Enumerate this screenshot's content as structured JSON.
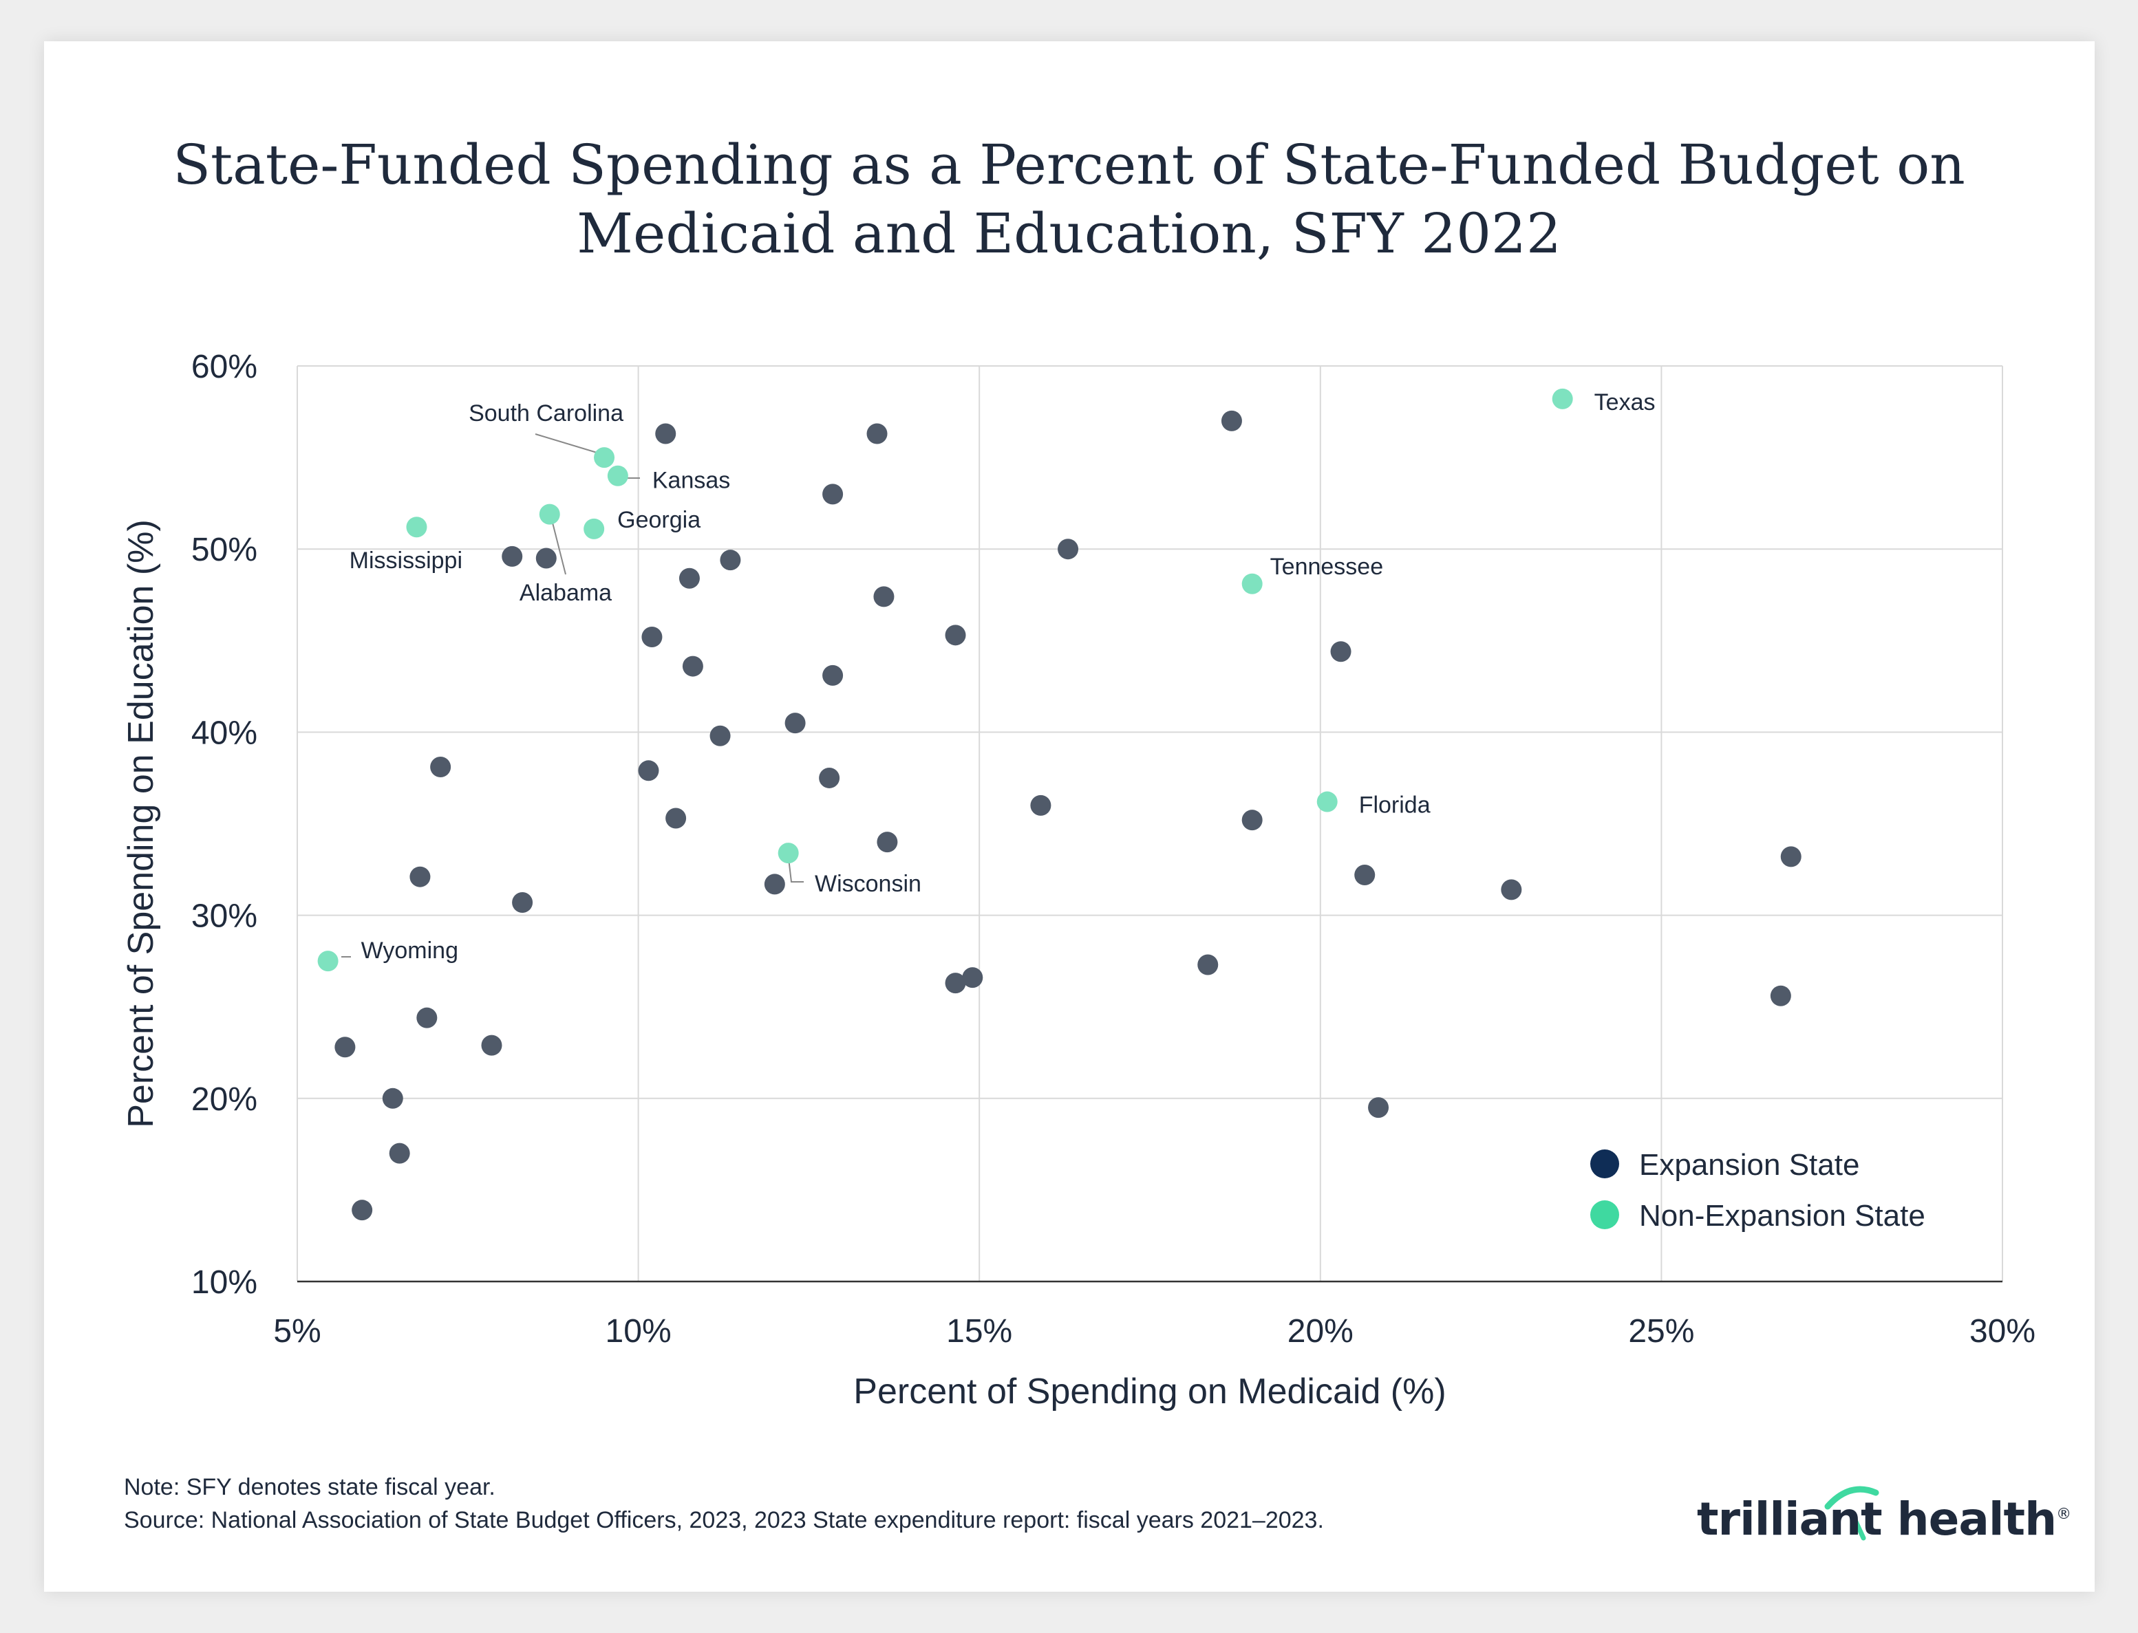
{
  "title_lines": [
    "State-Funded Spending as a Percent of State-Funded Budget on",
    "Medicaid and Education, SFY 2022"
  ],
  "note": "Note: SFY denotes state fiscal year.",
  "source": "Source: National Association of State Budget Officers, 2023, 2023 State expenditure report: fiscal years 2021–2023.",
  "logo": {
    "text": "trilliant health",
    "mark": "®"
  },
  "colors": {
    "expansion": "#505a69",
    "non_expansion": "#7ee2bf",
    "legend_expansion": "#0f2d56",
    "legend_non_expansion": "#3fd9a0"
  },
  "chart_data": {
    "type": "scatter",
    "title": "State-Funded Spending as a Percent of State-Funded Budget on Medicaid and Education, SFY 2022",
    "xlabel": "Percent of Spending on Medicaid (%)",
    "ylabel": "Percent of Spending on Education (%)",
    "xlim": [
      5,
      30
    ],
    "ylim": [
      10,
      60
    ],
    "x_ticks": [
      5,
      10,
      15,
      20,
      25,
      30
    ],
    "y_ticks": [
      10,
      20,
      30,
      40,
      50,
      60
    ],
    "x_tick_labels": [
      "5%",
      "10%",
      "15%",
      "20%",
      "25%",
      "30%"
    ],
    "y_tick_labels": [
      "10%",
      "20%",
      "30%",
      "40%",
      "50%",
      "60%"
    ],
    "grid": true,
    "legend": {
      "position": "bottom-right",
      "entries": [
        "Expansion State",
        "Non-Expansion State"
      ]
    },
    "series": [
      {
        "name": "Non-Expansion State",
        "points": [
          {
            "x": 23.55,
            "y": 58.2,
            "label": "Texas"
          },
          {
            "x": 9.5,
            "y": 55.0,
            "label": "South Carolina"
          },
          {
            "x": 9.7,
            "y": 54.0,
            "label": "Kansas"
          },
          {
            "x": 8.7,
            "y": 51.9,
            "label": "Alabama"
          },
          {
            "x": 9.35,
            "y": 51.1,
            "label": "Georgia"
          },
          {
            "x": 6.75,
            "y": 51.2,
            "label": "Mississippi"
          },
          {
            "x": 19.0,
            "y": 48.1,
            "label": "Tennessee"
          },
          {
            "x": 20.1,
            "y": 36.2,
            "label": "Florida"
          },
          {
            "x": 12.2,
            "y": 33.4,
            "label": "Wisconsin"
          },
          {
            "x": 5.45,
            "y": 27.5,
            "label": "Wyoming"
          }
        ]
      },
      {
        "name": "Expansion State",
        "points": [
          {
            "x": 18.7,
            "y": 57.0
          },
          {
            "x": 10.4,
            "y": 56.3
          },
          {
            "x": 13.5,
            "y": 56.3
          },
          {
            "x": 12.85,
            "y": 53.0
          },
          {
            "x": 16.3,
            "y": 50.0
          },
          {
            "x": 8.15,
            "y": 49.6
          },
          {
            "x": 8.65,
            "y": 49.5
          },
          {
            "x": 11.35,
            "y": 49.4
          },
          {
            "x": 10.75,
            "y": 48.4
          },
          {
            "x": 13.6,
            "y": 47.4
          },
          {
            "x": 10.2,
            "y": 45.2
          },
          {
            "x": 14.65,
            "y": 45.3
          },
          {
            "x": 20.3,
            "y": 44.4
          },
          {
            "x": 10.8,
            "y": 43.6
          },
          {
            "x": 12.85,
            "y": 43.1
          },
          {
            "x": 12.3,
            "y": 40.5
          },
          {
            "x": 11.2,
            "y": 39.8
          },
          {
            "x": 7.1,
            "y": 38.1
          },
          {
            "x": 10.15,
            "y": 37.9
          },
          {
            "x": 12.8,
            "y": 37.5
          },
          {
            "x": 15.9,
            "y": 36.0
          },
          {
            "x": 10.55,
            "y": 35.3
          },
          {
            "x": 19.0,
            "y": 35.2
          },
          {
            "x": 13.65,
            "y": 34.0
          },
          {
            "x": 26.9,
            "y": 33.2
          },
          {
            "x": 20.65,
            "y": 32.2
          },
          {
            "x": 6.8,
            "y": 32.1
          },
          {
            "x": 12.0,
            "y": 31.7
          },
          {
            "x": 22.8,
            "y": 31.4
          },
          {
            "x": 8.3,
            "y": 30.7
          },
          {
            "x": 18.35,
            "y": 27.3
          },
          {
            "x": 14.9,
            "y": 26.6
          },
          {
            "x": 14.65,
            "y": 26.3
          },
          {
            "x": 26.75,
            "y": 25.6
          },
          {
            "x": 6.9,
            "y": 24.4
          },
          {
            "x": 7.85,
            "y": 22.9
          },
          {
            "x": 5.7,
            "y": 22.8
          },
          {
            "x": 6.4,
            "y": 20.0
          },
          {
            "x": 20.85,
            "y": 19.5
          },
          {
            "x": 6.5,
            "y": 17.0
          },
          {
            "x": 5.95,
            "y": 13.9
          }
        ]
      }
    ]
  }
}
